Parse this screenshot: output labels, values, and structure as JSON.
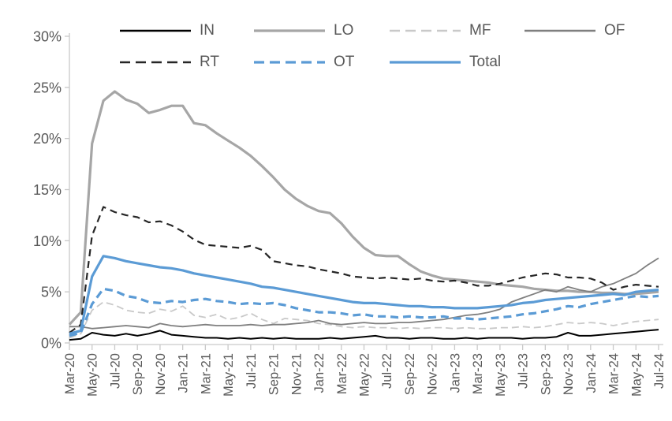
{
  "figure": {
    "background": "#ffffff",
    "text_color": "#595959",
    "axis_color": "#c9c9c9"
  },
  "legend": {
    "rows": [
      [
        "IN",
        "LO",
        "MF",
        "OF"
      ],
      [
        "RT",
        "OT",
        "Total"
      ]
    ]
  },
  "chart_data": {
    "type": "line",
    "title": "",
    "xlabel": "",
    "ylabel": "",
    "ylim": [
      0,
      30
    ],
    "grid": false,
    "legend_position": "top",
    "ytick_values": [
      0,
      5,
      10,
      15,
      20,
      25,
      30
    ],
    "ytick_labels": [
      "0%",
      "5%",
      "10%",
      "15%",
      "20%",
      "25%",
      "30%"
    ],
    "x_points_per_tick": 2,
    "x_tick_labels": [
      "Mar-20",
      "May-20",
      "Jul-20",
      "Sep-20",
      "Nov-20",
      "Jan-21",
      "Mar-21",
      "May-21",
      "Jul-21",
      "Sep-21",
      "Nov-21",
      "Jan-22",
      "Mar-22",
      "May-22",
      "Jul-22",
      "Sep-22",
      "Nov-22",
      "Jan-23",
      "Mar-23",
      "May-23",
      "Jul-23",
      "Sep-23",
      "Nov-23",
      "Jan-24",
      "Mar-24",
      "May-24",
      "Jul-24"
    ],
    "series": [
      {
        "name": "IN",
        "color": "#000000",
        "dash": "none",
        "width": 2,
        "values": [
          0.3,
          0.4,
          1.0,
          0.8,
          0.7,
          0.9,
          0.7,
          0.9,
          1.2,
          0.8,
          0.7,
          0.6,
          0.5,
          0.5,
          0.4,
          0.5,
          0.4,
          0.5,
          0.4,
          0.5,
          0.4,
          0.4,
          0.4,
          0.5,
          0.4,
          0.5,
          0.6,
          0.7,
          0.5,
          0.5,
          0.4,
          0.5,
          0.5,
          0.4,
          0.4,
          0.5,
          0.4,
          0.5,
          0.5,
          0.5,
          0.4,
          0.5,
          0.5,
          0.6,
          1.0,
          0.7,
          0.7,
          0.8,
          0.9,
          1.0,
          1.1,
          1.2,
          1.3
        ]
      },
      {
        "name": "LO",
        "color": "#a6a6a6",
        "dash": "none",
        "width": 3.2,
        "values": [
          1.8,
          3.0,
          19.5,
          23.7,
          24.6,
          23.8,
          23.4,
          22.5,
          22.8,
          23.2,
          23.2,
          21.5,
          21.3,
          20.5,
          19.8,
          19.1,
          18.3,
          17.3,
          16.2,
          15.0,
          14.1,
          13.4,
          12.9,
          12.7,
          11.7,
          10.4,
          9.3,
          8.6,
          8.5,
          8.5,
          7.7,
          7.0,
          6.6,
          6.3,
          6.2,
          6.1,
          6.0,
          5.9,
          5.7,
          5.6,
          5.5,
          5.3,
          5.2,
          5.1,
          5.1,
          5.0,
          5.0,
          4.9,
          4.9,
          4.8,
          4.8,
          4.9,
          5.0
        ]
      },
      {
        "name": "MF",
        "color": "#c9c9c9",
        "dash": "9,5",
        "width": 1.8,
        "values": [
          0.5,
          0.9,
          3.2,
          4.0,
          3.7,
          3.2,
          3.0,
          2.9,
          3.3,
          3.1,
          3.6,
          2.7,
          2.5,
          2.8,
          2.3,
          2.5,
          2.9,
          2.3,
          1.9,
          2.4,
          2.3,
          2.2,
          1.9,
          1.8,
          1.6,
          1.5,
          1.6,
          1.5,
          1.5,
          1.4,
          1.5,
          1.4,
          1.5,
          1.5,
          1.4,
          1.5,
          1.4,
          1.4,
          1.5,
          1.5,
          1.6,
          1.5,
          1.6,
          1.8,
          2.0,
          1.9,
          2.0,
          1.9,
          1.7,
          1.9,
          2.1,
          2.2,
          2.3
        ]
      },
      {
        "name": "OF",
        "color": "#7f7f7f",
        "dash": "none",
        "width": 1.8,
        "values": [
          1.6,
          1.6,
          1.4,
          1.5,
          1.6,
          1.7,
          1.6,
          1.5,
          1.9,
          1.7,
          1.6,
          1.7,
          1.8,
          1.7,
          1.7,
          1.7,
          1.8,
          1.7,
          1.8,
          1.8,
          1.9,
          2.0,
          2.2,
          1.9,
          1.8,
          1.9,
          2.0,
          1.9,
          1.9,
          2.0,
          2.0,
          2.1,
          2.2,
          2.3,
          2.5,
          2.7,
          2.8,
          3.0,
          3.3,
          4.0,
          4.4,
          4.8,
          5.2,
          5.0,
          5.5,
          5.2,
          5.0,
          5.5,
          5.8,
          6.3,
          6.8,
          7.6,
          8.3
        ]
      },
      {
        "name": "RT",
        "color": "#262626",
        "dash": "9,6",
        "width": 2.2,
        "values": [
          1.0,
          1.8,
          10.5,
          13.3,
          12.8,
          12.5,
          12.3,
          11.8,
          11.9,
          11.5,
          10.9,
          10.1,
          9.6,
          9.5,
          9.4,
          9.3,
          9.5,
          9.1,
          8.0,
          7.8,
          7.6,
          7.5,
          7.2,
          7.0,
          6.8,
          6.5,
          6.4,
          6.3,
          6.4,
          6.3,
          6.2,
          6.3,
          6.1,
          6.0,
          6.1,
          5.9,
          5.6,
          5.6,
          5.8,
          6.1,
          6.4,
          6.6,
          6.8,
          6.7,
          6.4,
          6.4,
          6.3,
          5.9,
          5.2,
          5.5,
          5.7,
          5.6,
          5.5
        ]
      },
      {
        "name": "OT",
        "color": "#5b9bd5",
        "dash": "10,6",
        "width": 3.2,
        "values": [
          0.7,
          1.0,
          3.8,
          5.3,
          5.1,
          4.6,
          4.4,
          4.0,
          3.9,
          4.1,
          4.0,
          4.2,
          4.3,
          4.1,
          4.0,
          3.8,
          3.9,
          3.8,
          3.9,
          3.7,
          3.4,
          3.2,
          3.0,
          3.0,
          2.9,
          2.7,
          2.8,
          2.6,
          2.6,
          2.5,
          2.6,
          2.5,
          2.5,
          2.6,
          2.4,
          2.4,
          2.3,
          2.4,
          2.5,
          2.6,
          2.8,
          2.9,
          3.1,
          3.3,
          3.6,
          3.5,
          3.8,
          4.0,
          4.2,
          4.4,
          4.6,
          4.5,
          4.6
        ]
      },
      {
        "name": "Total",
        "color": "#5b9bd5",
        "dash": "none",
        "width": 3.2,
        "values": [
          0.9,
          1.2,
          6.5,
          8.5,
          8.3,
          8.0,
          7.8,
          7.6,
          7.4,
          7.3,
          7.1,
          6.8,
          6.6,
          6.4,
          6.2,
          6.0,
          5.8,
          5.5,
          5.4,
          5.2,
          5.0,
          4.8,
          4.6,
          4.4,
          4.2,
          4.0,
          3.9,
          3.9,
          3.8,
          3.7,
          3.6,
          3.6,
          3.5,
          3.5,
          3.4,
          3.4,
          3.4,
          3.5,
          3.6,
          3.7,
          3.9,
          4.0,
          4.2,
          4.3,
          4.4,
          4.5,
          4.6,
          4.7,
          4.8,
          4.7,
          5.0,
          5.1,
          5.2
        ]
      }
    ]
  }
}
